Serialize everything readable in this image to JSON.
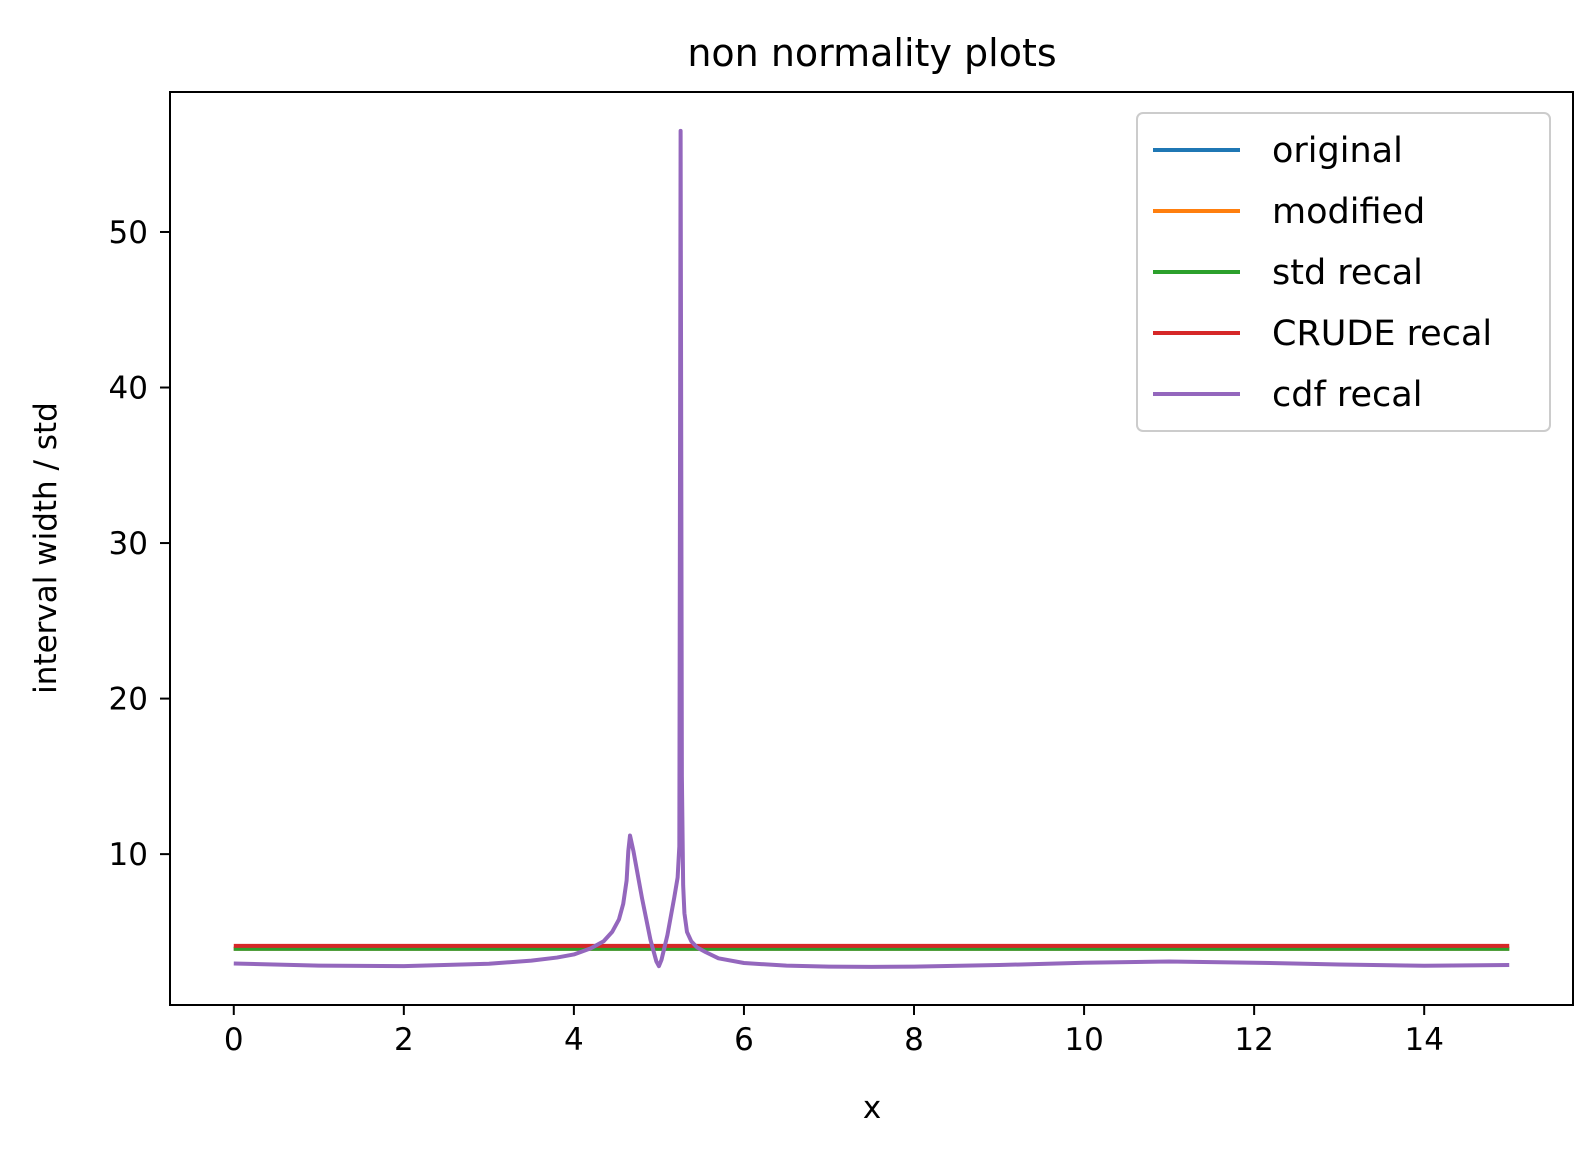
{
  "chart_data": {
    "type": "line",
    "title": "non normality plots",
    "xlabel": "x",
    "ylabel": "interval width / std",
    "xlim": [
      -0.75,
      15.75
    ],
    "ylim": [
      0.3,
      59.0
    ],
    "xticks": [
      0,
      2,
      4,
      6,
      8,
      10,
      12,
      14
    ],
    "xtick_labels": [
      "0",
      "2",
      "4",
      "6",
      "8",
      "10",
      "12",
      "14"
    ],
    "yticks": [
      10,
      20,
      30,
      40,
      50
    ],
    "ytick_labels": [
      "10",
      "20",
      "30",
      "40",
      "50"
    ],
    "grid": false,
    "legend_position": "upper right",
    "series": [
      {
        "name": "original",
        "color": "#1f77b4",
        "x": [
          0,
          15
        ],
        "y": [
          3.92,
          3.92
        ]
      },
      {
        "name": "modified",
        "color": "#ff7f0e",
        "x": [
          0,
          15
        ],
        "y": [
          3.92,
          3.92
        ]
      },
      {
        "name": "std recal",
        "color": "#2ca02c",
        "x": [
          0,
          15
        ],
        "y": [
          3.92,
          3.92
        ]
      },
      {
        "name": "CRUDE recal",
        "color": "#d62728",
        "x": [
          0,
          15
        ],
        "y": [
          4.1,
          4.1
        ]
      },
      {
        "name": "cdf recal",
        "color": "#9467bd",
        "x": [
          0,
          1,
          2,
          3,
          3.5,
          3.8,
          4.0,
          4.2,
          4.35,
          4.45,
          4.53,
          4.58,
          4.62,
          4.64,
          4.66,
          4.7,
          4.8,
          4.9,
          4.97,
          5.0,
          5.03,
          5.1,
          5.18,
          5.22,
          5.24,
          5.255,
          5.27,
          5.285,
          5.3,
          5.33,
          5.38,
          5.45,
          5.55,
          5.7,
          6.0,
          6.5,
          7.0,
          7.5,
          8.0,
          9.0,
          10.0,
          11.0,
          12.0,
          13.0,
          14.0,
          15.0
        ],
        "y": [
          2.97,
          2.83,
          2.8,
          2.95,
          3.15,
          3.35,
          3.55,
          3.95,
          4.4,
          5.0,
          5.8,
          6.8,
          8.3,
          10.2,
          11.2,
          10.2,
          7.2,
          4.5,
          3.1,
          2.8,
          3.2,
          4.8,
          7.2,
          8.5,
          10.5,
          56.5,
          15.0,
          8.0,
          6.2,
          5.0,
          4.4,
          4.0,
          3.7,
          3.3,
          3.0,
          2.83,
          2.77,
          2.75,
          2.77,
          2.87,
          3.02,
          3.1,
          3.02,
          2.9,
          2.82,
          2.87
        ]
      }
    ]
  }
}
